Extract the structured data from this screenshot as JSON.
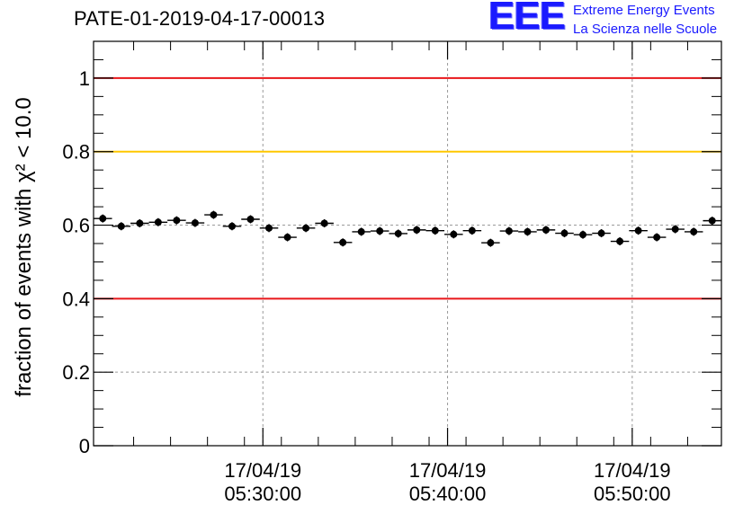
{
  "run_id": "PATE-01-2019-04-17-00013",
  "logo": {
    "mark": "EEE",
    "line1": "Extreme Energy Events",
    "line2": "La Scienza nelle Scuole",
    "color": "#1a1aff"
  },
  "chart_data": {
    "type": "scatter",
    "ylabel": "fraction of events with χ² < 10.0",
    "ylim": [
      0,
      1.1
    ],
    "yticks": [
      0,
      0.2,
      0.4,
      0.6,
      0.8,
      1
    ],
    "ytick_labels": [
      "0",
      "0.2",
      "0.4",
      "0.6",
      "0.8",
      "1"
    ],
    "x_unit": "minutes after 05:20:50 on 17/04/19",
    "xlim": [
      0,
      34
    ],
    "xticks": [
      {
        "value": 9.17,
        "date": "17/04/19",
        "time": "05:30:00"
      },
      {
        "value": 19.17,
        "date": "17/04/19",
        "time": "05:40:00"
      },
      {
        "value": 29.17,
        "date": "17/04/19",
        "time": "05:50:00"
      }
    ],
    "grid": true,
    "reference_lines": [
      {
        "y": 1.0,
        "color": "#e8161a"
      },
      {
        "y": 0.8,
        "color": "#ffc800"
      },
      {
        "y": 0.4,
        "color": "#e8161a"
      }
    ],
    "series": [
      {
        "color": "#000000",
        "x": [
          0.5,
          1.5,
          2.5,
          3.5,
          4.5,
          5.5,
          6.5,
          7.5,
          8.5,
          9.5,
          10.5,
          11.5,
          12.5,
          13.5,
          14.5,
          15.5,
          16.5,
          17.5,
          18.5,
          19.5,
          20.5,
          21.5,
          22.5,
          23.5,
          24.5,
          25.5,
          26.5,
          27.5,
          28.5,
          29.5,
          30.5,
          31.5,
          32.5,
          33.5
        ],
        "y": [
          0.618,
          0.597,
          0.605,
          0.608,
          0.613,
          0.606,
          0.628,
          0.597,
          0.616,
          0.592,
          0.567,
          0.592,
          0.605,
          0.553,
          0.582,
          0.584,
          0.577,
          0.587,
          0.585,
          0.575,
          0.585,
          0.552,
          0.584,
          0.582,
          0.587,
          0.578,
          0.574,
          0.578,
          0.556,
          0.585,
          0.567,
          0.589,
          0.582,
          0.612
        ],
        "y_err": 0.011,
        "x_err": 0.5
      }
    ]
  }
}
